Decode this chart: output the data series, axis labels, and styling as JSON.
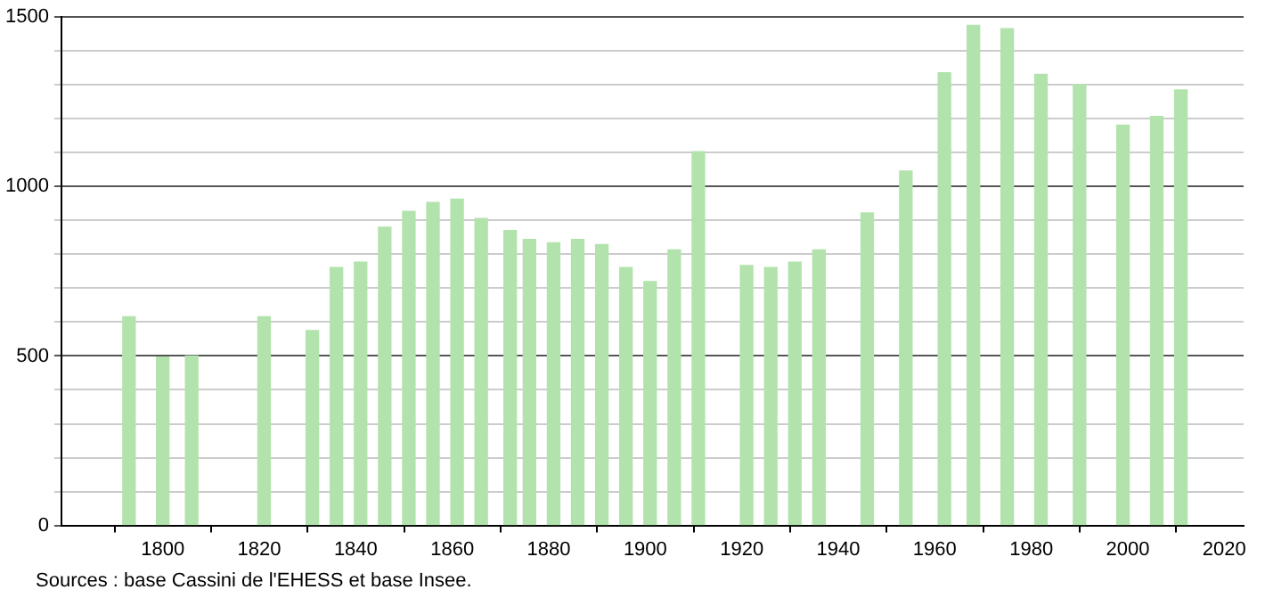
{
  "chart_data": {
    "type": "bar",
    "x": [
      1793,
      1800,
      1806,
      1821,
      1831,
      1836,
      1841,
      1846,
      1851,
      1856,
      1861,
      1866,
      1872,
      1876,
      1881,
      1886,
      1891,
      1896,
      1901,
      1906,
      1911,
      1921,
      1926,
      1931,
      1936,
      1946,
      1954,
      1962,
      1968,
      1975,
      1982,
      1990,
      1999,
      2006,
      2011
    ],
    "values": [
      616,
      497,
      500,
      616,
      575,
      761,
      777,
      880,
      927,
      953,
      963,
      906,
      870,
      844,
      834,
      844,
      829,
      761,
      720,
      813,
      1103,
      767,
      761,
      777,
      813,
      922,
      1046,
      1336,
      1476,
      1466,
      1331,
      1300,
      1181,
      1207,
      1285
    ],
    "color": "#b3e3ad",
    "xlim": [
      1779,
      2024
    ],
    "xticks": [
      1800,
      1820,
      1840,
      1860,
      1880,
      1900,
      1920,
      1940,
      1960,
      1980,
      2000,
      2020
    ],
    "ylim": [
      0,
      1500
    ],
    "yticks": [
      0,
      {
        "value": 100,
        "label": null
      },
      {
        "value": 200,
        "label": null
      },
      {
        "value": 300,
        "label": null
      },
      {
        "value": 400,
        "label": null
      },
      500,
      {
        "value": 600,
        "label": null
      },
      {
        "value": 700,
        "label": null
      },
      {
        "value": 800,
        "label": null
      },
      {
        "value": 900,
        "label": null
      },
      1000,
      {
        "value": 1100,
        "label": null
      },
      {
        "value": 1200,
        "label": null
      },
      {
        "value": 1300,
        "label": null
      },
      {
        "value": 1400,
        "label": null
      },
      1500
    ],
    "grid": "y",
    "legend": false,
    "annotations": [
      "Sources : base Cassini de l'EHESS et base Insee."
    ]
  }
}
